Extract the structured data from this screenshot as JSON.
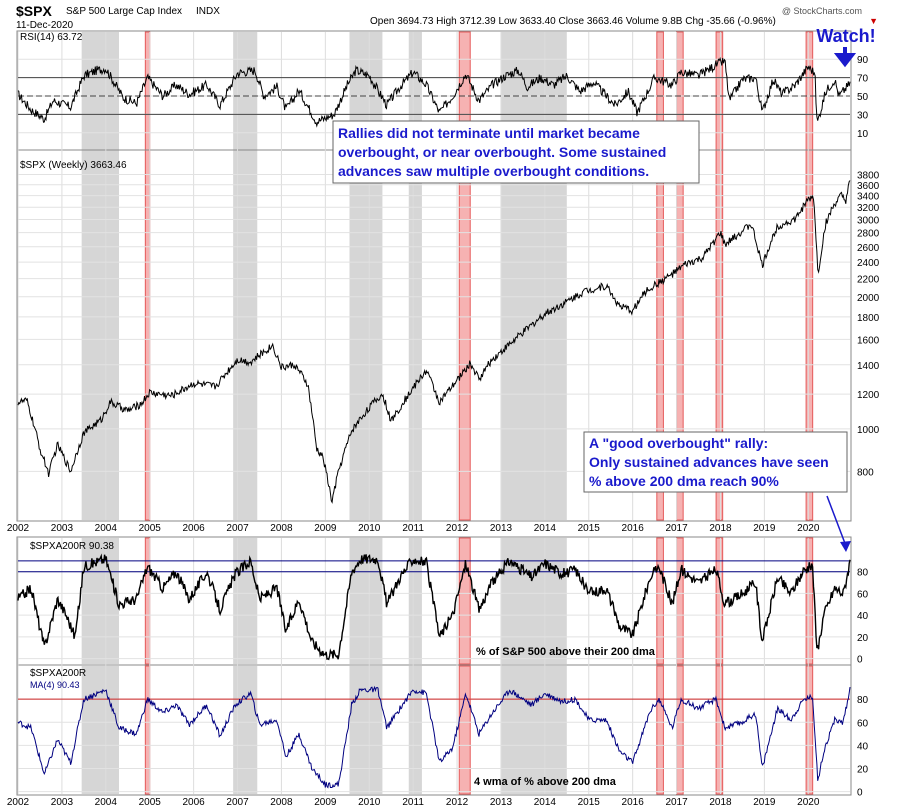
{
  "header": {
    "symbol": "$SPX",
    "name": "S&P 500 Large Cap Index",
    "exchange": "INDX",
    "date": "11-Dec-2020",
    "ohlc": "Open 3694.73  High 3712.39  Low 3633.40  Close 3663.46  Volume 9.8B  Chg -35.66 (-0.96%)",
    "watermark": "@ StockCharts.com",
    "down_marker": "▼"
  },
  "colors": {
    "price_line": "#000000",
    "ma_line": "#000080",
    "gray_band": "#c8c8c8",
    "red_band": "#f4a0a0",
    "red_border": "#e03030",
    "annotation": "#1a1acc",
    "ref_red": "#cc2222",
    "ref_navy": "#000080"
  },
  "annotations": {
    "box1": [
      "Rallies did not terminate until market became",
      "overbought, or near overbought. Some sustained",
      "advances saw multiple overbought conditions."
    ],
    "box2": [
      "A \"good overbought\" rally:",
      "Only sustained advances have seen",
      "% above 200 dma reach 90%"
    ],
    "watch": "Watch!",
    "pct_label": "% of S&P 500 above their 200 dma",
    "wma_label": "4 wma of % above 200 dma"
  },
  "chart_data": {
    "type": "line",
    "x_ticks": [
      "2002",
      "2003",
      "2004",
      "2005",
      "2006",
      "2007",
      "2008",
      "2009",
      "2010",
      "2011",
      "2012",
      "2013",
      "2014",
      "2015",
      "2016",
      "2017",
      "2018",
      "2019",
      "2020"
    ],
    "x_range": [
      2002.0,
      2020.95
    ],
    "gray_periods": [
      [
        2003.45,
        2004.3
      ],
      [
        2006.9,
        2007.45
      ],
      [
        2009.55,
        2010.3
      ],
      [
        2010.9,
        2011.2
      ],
      [
        2013.0,
        2014.5
      ]
    ],
    "red_periods": [
      [
        2004.9,
        2005.0
      ],
      [
        2012.05,
        2012.3
      ],
      [
        2016.55,
        2016.7
      ],
      [
        2017.0,
        2017.15
      ],
      [
        2017.9,
        2018.05
      ],
      [
        2019.95,
        2020.1
      ]
    ],
    "panels": [
      {
        "title": "RSI(14) 63.72",
        "series": "RSI(14)",
        "ylim": [
          0,
          100
        ],
        "y_ticks": [
          10,
          30,
          50,
          70,
          90
        ],
        "ref_lines": [
          30,
          50,
          70
        ],
        "keypoints": [
          [
            2002.0,
            52
          ],
          [
            2002.3,
            35
          ],
          [
            2002.6,
            25
          ],
          [
            2002.8,
            45
          ],
          [
            2003.2,
            38
          ],
          [
            2003.5,
            72
          ],
          [
            2003.8,
            78
          ],
          [
            2004.0,
            80
          ],
          [
            2004.4,
            48
          ],
          [
            2004.7,
            42
          ],
          [
            2004.95,
            70
          ],
          [
            2005.3,
            50
          ],
          [
            2005.6,
            62
          ],
          [
            2005.9,
            52
          ],
          [
            2006.3,
            62
          ],
          [
            2006.6,
            40
          ],
          [
            2007.0,
            75
          ],
          [
            2007.4,
            78
          ],
          [
            2007.6,
            50
          ],
          [
            2007.9,
            60
          ],
          [
            2008.1,
            35
          ],
          [
            2008.4,
            56
          ],
          [
            2008.8,
            22
          ],
          [
            2009.2,
            30
          ],
          [
            2009.5,
            62
          ],
          [
            2009.7,
            78
          ],
          [
            2010.0,
            72
          ],
          [
            2010.4,
            40
          ],
          [
            2010.7,
            60
          ],
          [
            2011.0,
            76
          ],
          [
            2011.3,
            62
          ],
          [
            2011.6,
            32
          ],
          [
            2011.9,
            50
          ],
          [
            2012.2,
            74
          ],
          [
            2012.5,
            45
          ],
          [
            2012.8,
            62
          ],
          [
            2013.1,
            72
          ],
          [
            2013.4,
            78
          ],
          [
            2013.6,
            60
          ],
          [
            2013.9,
            70
          ],
          [
            2014.2,
            62
          ],
          [
            2014.5,
            72
          ],
          [
            2014.8,
            55
          ],
          [
            2015.1,
            65
          ],
          [
            2015.6,
            40
          ],
          [
            2015.9,
            55
          ],
          [
            2016.1,
            32
          ],
          [
            2016.5,
            70
          ],
          [
            2016.9,
            62
          ],
          [
            2017.1,
            76
          ],
          [
            2017.5,
            72
          ],
          [
            2017.9,
            84
          ],
          [
            2018.1,
            88
          ],
          [
            2018.2,
            45
          ],
          [
            2018.5,
            68
          ],
          [
            2018.8,
            70
          ],
          [
            2018.95,
            32
          ],
          [
            2019.2,
            68
          ],
          [
            2019.4,
            52
          ],
          [
            2019.7,
            62
          ],
          [
            2020.0,
            82
          ],
          [
            2020.15,
            75
          ],
          [
            2020.2,
            20
          ],
          [
            2020.4,
            55
          ],
          [
            2020.6,
            68
          ],
          [
            2020.7,
            50
          ],
          [
            2020.95,
            64
          ]
        ]
      },
      {
        "title": "$SPX (Weekly) 3663.46",
        "series": "$SPX (Weekly)",
        "scale": "log",
        "ylim": [
          620,
          3850
        ],
        "y_ticks": [
          800,
          1000,
          1200,
          1400,
          1600,
          1800,
          2000,
          2200,
          2400,
          2600,
          2800,
          3000,
          3200,
          3400,
          3600,
          3800
        ],
        "keypoints": [
          [
            2002.0,
            1150
          ],
          [
            2002.2,
            1160
          ],
          [
            2002.5,
            900
          ],
          [
            2002.7,
            790
          ],
          [
            2002.9,
            920
          ],
          [
            2003.2,
            800
          ],
          [
            2003.5,
            980
          ],
          [
            2003.9,
            1050
          ],
          [
            2004.1,
            1150
          ],
          [
            2004.5,
            1100
          ],
          [
            2004.8,
            1140
          ],
          [
            2005.0,
            1210
          ],
          [
            2005.5,
            1190
          ],
          [
            2006.0,
            1270
          ],
          [
            2006.5,
            1250
          ],
          [
            2007.0,
            1440
          ],
          [
            2007.3,
            1420
          ],
          [
            2007.8,
            1550
          ],
          [
            2008.0,
            1380
          ],
          [
            2008.3,
            1400
          ],
          [
            2008.6,
            1260
          ],
          [
            2008.8,
            900
          ],
          [
            2008.95,
            860
          ],
          [
            2009.15,
            680
          ],
          [
            2009.3,
            800
          ],
          [
            2009.6,
            990
          ],
          [
            2010.0,
            1120
          ],
          [
            2010.3,
            1200
          ],
          [
            2010.5,
            1040
          ],
          [
            2010.9,
            1200
          ],
          [
            2011.3,
            1360
          ],
          [
            2011.6,
            1150
          ],
          [
            2011.9,
            1250
          ],
          [
            2012.3,
            1410
          ],
          [
            2012.5,
            1300
          ],
          [
            2012.8,
            1440
          ],
          [
            2013.2,
            1560
          ],
          [
            2013.6,
            1690
          ],
          [
            2014.0,
            1830
          ],
          [
            2014.5,
            1950
          ],
          [
            2014.9,
            2060
          ],
          [
            2015.4,
            2120
          ],
          [
            2015.7,
            1900
          ],
          [
            2016.0,
            1860
          ],
          [
            2016.3,
            2060
          ],
          [
            2016.9,
            2250
          ],
          [
            2017.2,
            2370
          ],
          [
            2017.6,
            2450
          ],
          [
            2018.0,
            2800
          ],
          [
            2018.1,
            2620
          ],
          [
            2018.7,
            2930
          ],
          [
            2018.95,
            2350
          ],
          [
            2019.3,
            2900
          ],
          [
            2019.7,
            3000
          ],
          [
            2020.0,
            3330
          ],
          [
            2020.12,
            3380
          ],
          [
            2020.22,
            2230
          ],
          [
            2020.4,
            2950
          ],
          [
            2020.6,
            3250
          ],
          [
            2020.75,
            3400
          ],
          [
            2020.85,
            3300
          ],
          [
            2020.95,
            3663
          ]
        ]
      },
      {
        "title": "$SPXA200R 90.38",
        "series": "$SPXA200R",
        "ylim": [
          -5,
          100
        ],
        "y_ticks": [
          0,
          20,
          40,
          60,
          80
        ],
        "ref_lines": [
          80,
          90
        ],
        "keypoints": [
          [
            2002.0,
            55
          ],
          [
            2002.3,
            65
          ],
          [
            2002.6,
            10
          ],
          [
            2002.9,
            55
          ],
          [
            2003.1,
            40
          ],
          [
            2003.3,
            20
          ],
          [
            2003.5,
            85
          ],
          [
            2004.0,
            92
          ],
          [
            2004.3,
            50
          ],
          [
            2004.7,
            55
          ],
          [
            2004.95,
            85
          ],
          [
            2005.3,
            65
          ],
          [
            2005.6,
            80
          ],
          [
            2005.9,
            55
          ],
          [
            2006.3,
            80
          ],
          [
            2006.6,
            45
          ],
          [
            2006.95,
            78
          ],
          [
            2007.3,
            90
          ],
          [
            2007.5,
            55
          ],
          [
            2007.9,
            65
          ],
          [
            2008.1,
            25
          ],
          [
            2008.4,
            55
          ],
          [
            2008.7,
            15
          ],
          [
            2009.0,
            4
          ],
          [
            2009.3,
            4
          ],
          [
            2009.6,
            80
          ],
          [
            2009.8,
            92
          ],
          [
            2010.2,
            92
          ],
          [
            2010.4,
            50
          ],
          [
            2010.7,
            75
          ],
          [
            2011.0,
            92
          ],
          [
            2011.3,
            88
          ],
          [
            2011.6,
            20
          ],
          [
            2011.9,
            40
          ],
          [
            2012.2,
            88
          ],
          [
            2012.5,
            45
          ],
          [
            2012.8,
            70
          ],
          [
            2013.2,
            90
          ],
          [
            2013.7,
            75
          ],
          [
            2014.0,
            88
          ],
          [
            2014.4,
            78
          ],
          [
            2014.7,
            82
          ],
          [
            2015.0,
            60
          ],
          [
            2015.4,
            65
          ],
          [
            2015.7,
            30
          ],
          [
            2016.0,
            22
          ],
          [
            2016.4,
            75
          ],
          [
            2016.6,
            85
          ],
          [
            2016.9,
            50
          ],
          [
            2017.1,
            82
          ],
          [
            2017.5,
            70
          ],
          [
            2017.9,
            82
          ],
          [
            2018.1,
            50
          ],
          [
            2018.5,
            60
          ],
          [
            2018.8,
            70
          ],
          [
            2018.95,
            15
          ],
          [
            2019.3,
            75
          ],
          [
            2019.6,
            60
          ],
          [
            2019.9,
            82
          ],
          [
            2020.1,
            85
          ],
          [
            2020.2,
            4
          ],
          [
            2020.35,
            40
          ],
          [
            2020.6,
            65
          ],
          [
            2020.8,
            60
          ],
          [
            2020.95,
            90
          ]
        ]
      },
      {
        "title": "$SPXA200R",
        "series": "MA(4) 90.43",
        "ylim": [
          -2,
          100
        ],
        "y_ticks": [
          0,
          20,
          40,
          60,
          80
        ],
        "ref_lines": [
          80
        ],
        "keypoints": [
          [
            2002.0,
            60
          ],
          [
            2002.3,
            55
          ],
          [
            2002.6,
            15
          ],
          [
            2002.9,
            45
          ],
          [
            2003.2,
            25
          ],
          [
            2003.5,
            80
          ],
          [
            2004.0,
            88
          ],
          [
            2004.3,
            55
          ],
          [
            2004.7,
            50
          ],
          [
            2004.95,
            80
          ],
          [
            2005.3,
            68
          ],
          [
            2005.6,
            75
          ],
          [
            2005.9,
            58
          ],
          [
            2006.3,
            75
          ],
          [
            2006.6,
            48
          ],
          [
            2006.95,
            75
          ],
          [
            2007.3,
            85
          ],
          [
            2007.5,
            58
          ],
          [
            2007.9,
            62
          ],
          [
            2008.1,
            30
          ],
          [
            2008.4,
            50
          ],
          [
            2008.7,
            20
          ],
          [
            2009.0,
            6
          ],
          [
            2009.3,
            6
          ],
          [
            2009.6,
            75
          ],
          [
            2009.8,
            88
          ],
          [
            2010.2,
            88
          ],
          [
            2010.4,
            55
          ],
          [
            2010.7,
            72
          ],
          [
            2011.0,
            88
          ],
          [
            2011.3,
            85
          ],
          [
            2011.6,
            25
          ],
          [
            2011.9,
            38
          ],
          [
            2012.2,
            85
          ],
          [
            2012.5,
            50
          ],
          [
            2012.8,
            68
          ],
          [
            2013.2,
            88
          ],
          [
            2013.7,
            75
          ],
          [
            2014.0,
            85
          ],
          [
            2014.4,
            78
          ],
          [
            2014.7,
            80
          ],
          [
            2015.0,
            62
          ],
          [
            2015.4,
            62
          ],
          [
            2015.7,
            35
          ],
          [
            2016.0,
            25
          ],
          [
            2016.4,
            70
          ],
          [
            2016.6,
            80
          ],
          [
            2016.9,
            55
          ],
          [
            2017.1,
            80
          ],
          [
            2017.5,
            72
          ],
          [
            2017.9,
            80
          ],
          [
            2018.1,
            55
          ],
          [
            2018.5,
            60
          ],
          [
            2018.8,
            68
          ],
          [
            2018.95,
            20
          ],
          [
            2019.3,
            72
          ],
          [
            2019.6,
            62
          ],
          [
            2019.9,
            80
          ],
          [
            2020.1,
            82
          ],
          [
            2020.22,
            8
          ],
          [
            2020.35,
            35
          ],
          [
            2020.6,
            62
          ],
          [
            2020.8,
            60
          ],
          [
            2020.95,
            90
          ]
        ]
      }
    ]
  }
}
